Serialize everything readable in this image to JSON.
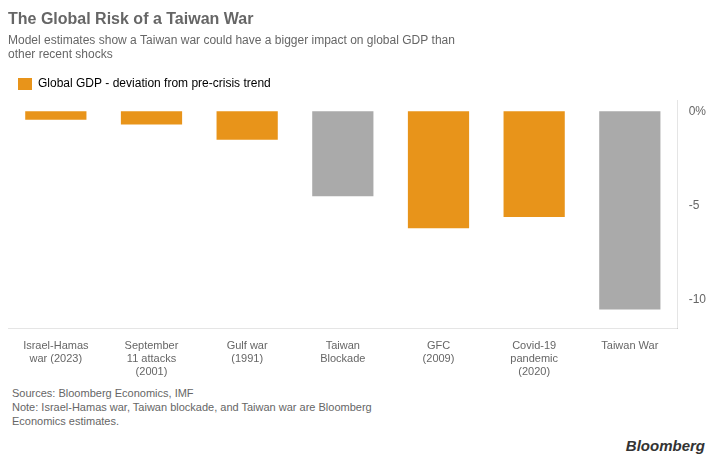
{
  "chart_data": {
    "type": "bar",
    "title": "The Global Risk of a Taiwan War",
    "subtitle": "Model estimates show a Taiwan war could have a bigger impact on global GDP than\nother recent shocks",
    "categories": [
      "Israel-Hamas\nwar (2023)",
      "September\n11 attacks\n(2001)",
      "Gulf war\n(1991)",
      "Taiwan\nBlockade",
      "GFC\n(2009)",
      "Covid-19\npandemic\n(2020)",
      "Taiwan War"
    ],
    "series": [
      {
        "name": "Global GDP - deviation from pre-crisis trend",
        "color": "#E8941A",
        "colors": [
          "#E8941A",
          "#E8941A",
          "#E8941A",
          "#AAAAAA",
          "#E8941A",
          "#E8941A",
          "#AAAAAA"
        ],
        "values": [
          -0.45,
          -0.7,
          -1.5,
          -4.5,
          -6.2,
          -5.6,
          -10.5
        ]
      }
    ],
    "ylim": [
      -11.5,
      0.6
    ],
    "yticks": [
      {
        "value": 0,
        "label": "0%"
      },
      -5,
      -10
    ],
    "grid": false,
    "legend": "upper left",
    "annotations": [
      "Sources: Bloomberg Economics, IMF\nNote: Israel-Hamas war, Taiwan blockade, and Taiwan war are Bloomberg\nEconomics estimates.",
      "Bloomberg"
    ]
  }
}
